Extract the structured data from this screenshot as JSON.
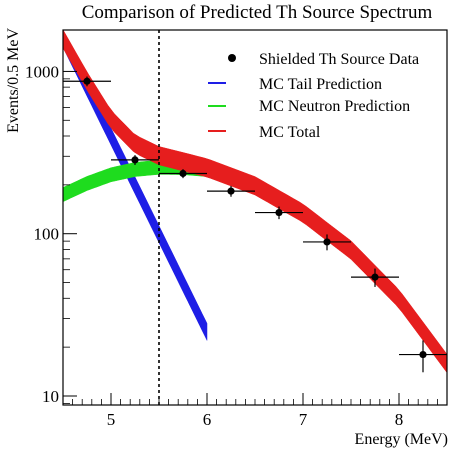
{
  "chart_data": {
    "type": "scatter",
    "title": "Comparison of Predicted Th Source Spectrum",
    "xlabel": "Energy (MeV)",
    "ylabel": "Events/0.5 MeV",
    "xlim": [
      4.5,
      8.5
    ],
    "ylim": [
      8.8,
      1800
    ],
    "yscale": "log",
    "x_ticks": [
      5,
      6,
      7,
      8
    ],
    "x_tick_labels": [
      "5",
      "6",
      "7",
      "8"
    ],
    "y_ticks": [
      10,
      100,
      1000
    ],
    "y_tick_labels": [
      "10",
      "100",
      "1000"
    ],
    "grid": false,
    "legend_position": "top-right",
    "threshold_line_x": 5.5,
    "data_series": {
      "name": "Shielded Th Source Data",
      "color": "#000000",
      "x": [
        4.75,
        5.25,
        5.75,
        6.25,
        6.75,
        7.25,
        7.75,
        8.25
      ],
      "y": [
        870,
        285,
        235,
        183,
        135,
        89,
        54,
        18
      ],
      "y_err": [
        60,
        20,
        15,
        14,
        12,
        10,
        7,
        4
      ],
      "x_err": 0.25
    },
    "bands": [
      {
        "name": "MC Tail Prediction",
        "color": "#1e1ee6",
        "x": [
          4.5,
          4.75,
          5.0,
          5.25,
          5.5,
          5.75,
          6.0
        ],
        "y": [
          1600,
          800,
          400,
          200,
          100,
          50,
          25
        ],
        "rel_width": 0.12
      },
      {
        "name": "MC Neutron Prediction",
        "color": "#1edc1e",
        "x": [
          4.5,
          4.75,
          5.0,
          5.25,
          5.5,
          5.75,
          6.0
        ],
        "y": [
          175,
          205,
          232,
          250,
          258,
          257,
          250
        ],
        "rel_width": 0.1
      },
      {
        "name": "MC Total",
        "color": "#e61e1e",
        "x": [
          4.5,
          4.75,
          5.0,
          5.25,
          5.5,
          5.75,
          6.0,
          6.5,
          7.0,
          7.5,
          8.0,
          8.5
        ],
        "y": [
          1600,
          880,
          510,
          360,
          305,
          280,
          257,
          199,
          135,
          80,
          40,
          16
        ],
        "rel_width": 0.13
      }
    ]
  }
}
